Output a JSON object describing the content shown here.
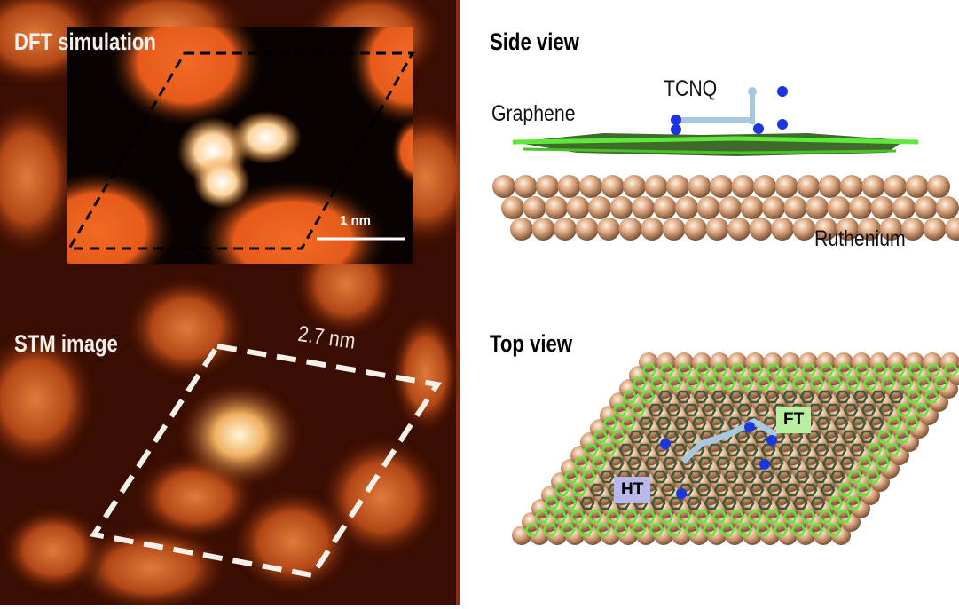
{
  "stm_panel": {
    "dft_label": "DFT simulation",
    "stm_label": "STM image",
    "scale_bar": "1 nm",
    "cell_size": "2.7 nm"
  },
  "side_view": {
    "heading": "Side view",
    "molecule": "TCNQ",
    "layer": "Graphene",
    "substrate": "Ruthenium"
  },
  "top_view": {
    "heading": "Top view",
    "site_ft": "FT",
    "site_ht": "HT"
  },
  "colors": {
    "stm_dark": "#3a0d02",
    "stm_orange": "#e8581c",
    "graphene": "#5ee83a",
    "ruthenium": "#d9a27a",
    "nitrogen": "#1b35e0",
    "ht_tag": "#b8b8ec",
    "ft_tag": "#b8f0a0"
  }
}
